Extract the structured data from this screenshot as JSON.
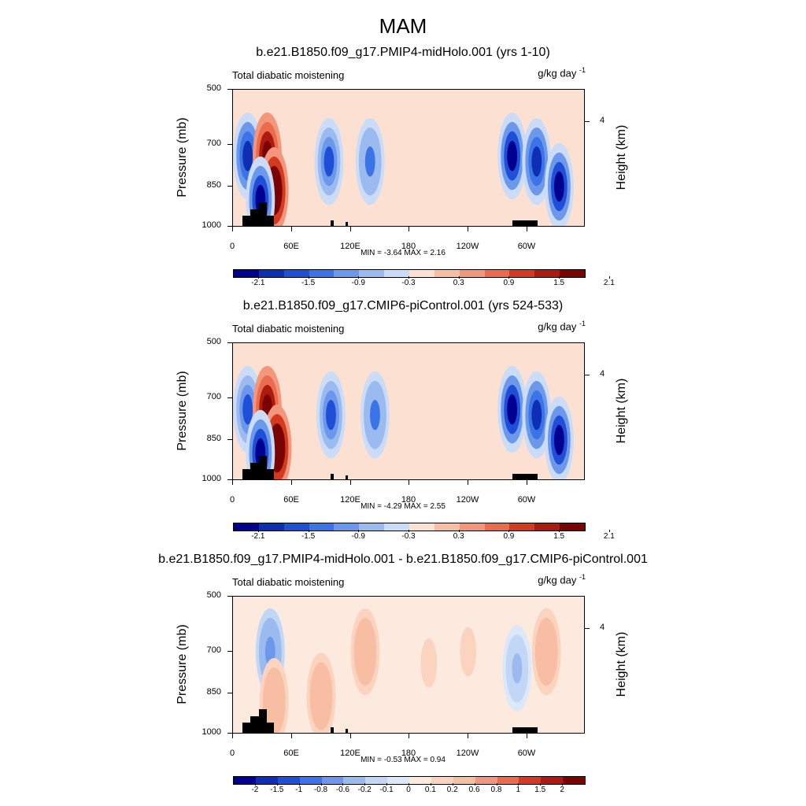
{
  "title": "MAM",
  "colors": {
    "palette14": [
      "#000090",
      "#0d2fb4",
      "#1f4fd6",
      "#3b74e6",
      "#6b98ea",
      "#9bbaf0",
      "#cadcf7",
      "#fce1d2",
      "#f7bea4",
      "#f3977c",
      "#eb6b4d",
      "#d33a1f",
      "#ac1a10",
      "#780300"
    ],
    "palette16": [
      "#000090",
      "#0d2fb4",
      "#1f4fd6",
      "#3b74e6",
      "#6b98ea",
      "#9bbaf0",
      "#c2d7f5",
      "#dce8fa",
      "#fdeade",
      "#fbd3be",
      "#f7bea4",
      "#f3977c",
      "#eb6b4d",
      "#d33a1f",
      "#ac1a10",
      "#780300"
    ],
    "land": "#000000"
  },
  "axis_common": {
    "yticks": [
      "500",
      "700",
      "850",
      "1000"
    ],
    "xticks": [
      "0",
      "60E",
      "120E",
      "180",
      "120W",
      "60W"
    ],
    "right_ticks": [
      "4"
    ],
    "ylabel": "Pressure (mb)",
    "rlabel": "Height (km)",
    "left_label": "Total diabatic moistening",
    "units": "g/kg day",
    "units_exp": "-1"
  },
  "panels": [
    {
      "title": "b.e21.B1850.f09_g17.PMIP4-midHolo.001 (yrs 1-10)",
      "min_label": "MIN =",
      "min": "-3.64",
      "max_label": "MAX =",
      "max": "2.16",
      "colorbar_labels": [
        "-2.1",
        "-1.5",
        "-0.9",
        "-0.3",
        "0.3",
        "0.9",
        "1.5",
        "2.1"
      ]
    },
    {
      "title": "b.e21.B1850.f09_g17.CMIP6-piControl.001 (yrs 524-533)",
      "min_label": "MIN =",
      "min": "-4.29",
      "max_label": "MAX =",
      "max": "2.55",
      "colorbar_labels": [
        "-2.1",
        "-1.5",
        "-0.9",
        "-0.3",
        "0.3",
        "0.9",
        "1.5",
        "2.1"
      ]
    },
    {
      "title": "b.e21.B1850.f09_g17.PMIP4-midHolo.001 - b.e21.B1850.f09_g17.CMIP6-piControl.001",
      "min_label": "MIN =",
      "min": "-0.53",
      "max_label": "MAX =",
      "max": "0.94",
      "colorbar_labels": [
        "-2",
        "-1.5",
        "-1",
        "-0.8",
        "-0.6",
        "-0.2",
        "-0.1",
        "0",
        "0.1",
        "0.2",
        "0.6",
        "0.8",
        "1",
        "1.5",
        "2"
      ]
    }
  ],
  "chart_data": [
    {
      "type": "heatmap",
      "title": "b.e21.B1850.f09_g17.PMIP4-midHolo.001 (yrs 1-10)",
      "xlabel": "",
      "ylabel": "Pressure (mb)",
      "x_ticks": [
        "0",
        "60E",
        "120E",
        "180",
        "120W",
        "60W"
      ],
      "y_ticks": [
        500,
        700,
        850,
        1000
      ],
      "variable": "Total diabatic moistening",
      "units": "g/kg day-1",
      "levels": [
        -2.1,
        -1.8,
        -1.5,
        -1.2,
        -0.9,
        -0.6,
        -0.3,
        0,
        0.3,
        0.6,
        0.9,
        1.2,
        1.5,
        1.8,
        2.1
      ],
      "min": -3.64,
      "max": 2.16,
      "features": [
        {
          "lon": 15,
          "p": 740,
          "value": -1.8
        },
        {
          "lon": 35,
          "p": 740,
          "value": 1.8
        },
        {
          "lon": 42,
          "p": 865,
          "value": 2.1
        },
        {
          "lon": 28,
          "p": 900,
          "value": -2.1
        },
        {
          "lon": 98,
          "p": 760,
          "value": -1.5
        },
        {
          "lon": 140,
          "p": 760,
          "value": -1.2
        },
        {
          "lon": 285,
          "p": 740,
          "value": -2.1
        },
        {
          "lon": 310,
          "p": 760,
          "value": -1.8
        },
        {
          "lon": 333,
          "p": 850,
          "value": -2.1
        }
      ]
    },
    {
      "type": "heatmap",
      "title": "b.e21.B1850.f09_g17.CMIP6-piControl.001 (yrs 524-533)",
      "xlabel": "",
      "ylabel": "Pressure (mb)",
      "x_ticks": [
        "0",
        "60E",
        "120E",
        "180",
        "120W",
        "60W"
      ],
      "y_ticks": [
        500,
        700,
        850,
        1000
      ],
      "variable": "Total diabatic moistening",
      "units": "g/kg day-1",
      "levels": [
        -2.1,
        -1.8,
        -1.5,
        -1.2,
        -0.9,
        -0.6,
        -0.3,
        0,
        0.3,
        0.6,
        0.9,
        1.2,
        1.5,
        1.8,
        2.1
      ],
      "min": -4.29,
      "max": 2.55,
      "features": [
        {
          "lon": 15,
          "p": 740,
          "value": -1.5
        },
        {
          "lon": 35,
          "p": 740,
          "value": 1.8
        },
        {
          "lon": 45,
          "p": 880,
          "value": 2.1
        },
        {
          "lon": 28,
          "p": 900,
          "value": -2.1
        },
        {
          "lon": 100,
          "p": 760,
          "value": -1.5
        },
        {
          "lon": 145,
          "p": 760,
          "value": -1.2
        },
        {
          "lon": 285,
          "p": 740,
          "value": -2.1
        },
        {
          "lon": 310,
          "p": 760,
          "value": -1.8
        },
        {
          "lon": 333,
          "p": 850,
          "value": -2.1
        }
      ]
    },
    {
      "type": "heatmap",
      "title": "b.e21.B1850.f09_g17.PMIP4-midHolo.001 - b.e21.B1850.f09_g17.CMIP6-piControl.001",
      "xlabel": "",
      "ylabel": "Pressure (mb)",
      "x_ticks": [
        "0",
        "60E",
        "120E",
        "180",
        "120W",
        "60W"
      ],
      "y_ticks": [
        500,
        700,
        850,
        1000
      ],
      "variable": "Total diabatic moistening",
      "units": "g/kg day-1",
      "levels": [
        -2,
        -1.5,
        -1,
        -0.8,
        -0.6,
        -0.2,
        -0.1,
        0,
        0.1,
        0.2,
        0.6,
        0.8,
        1,
        1.5,
        2
      ],
      "min": -0.53,
      "max": 0.94,
      "features": [
        {
          "lon": 38,
          "p": 700,
          "value": -0.6
        },
        {
          "lon": 42,
          "p": 880,
          "value": 0.6
        },
        {
          "lon": 90,
          "p": 860,
          "value": 0.6
        },
        {
          "lon": 135,
          "p": 700,
          "value": 0.6
        },
        {
          "lon": 200,
          "p": 740,
          "value": 0.2
        },
        {
          "lon": 240,
          "p": 700,
          "value": 0.2
        },
        {
          "lon": 290,
          "p": 760,
          "value": -0.2
        },
        {
          "lon": 320,
          "p": 700,
          "value": 0.6
        }
      ]
    }
  ]
}
